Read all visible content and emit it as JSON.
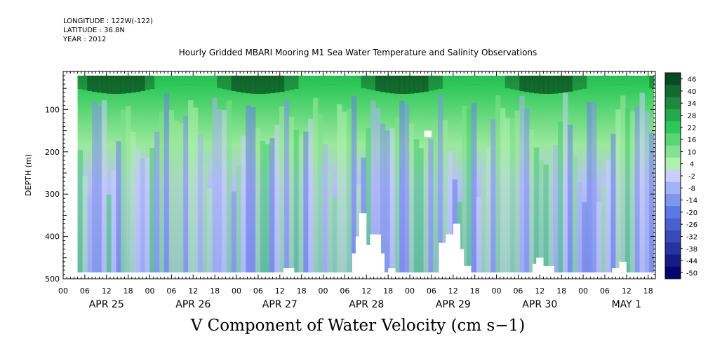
{
  "header": {
    "longitude": "LONGITUDE : 122W(-122)",
    "latitude": "LATITUDE : 36.8N",
    "year": "YEAR : 2012",
    "title": "Hourly Gridded MBARI Mooring M1 Sea Water Temperature and Salinity Observations"
  },
  "footer": {
    "variable_title": "V Component of Water Velocity (cm s−1)"
  },
  "chart_data": {
    "type": "heatmap",
    "title": "Hourly Gridded MBARI Mooring M1 Sea Water Temperature and Salinity Observations",
    "variable": "V Component of Water Velocity (cm s−1)",
    "xlabel": "",
    "ylabel": "DEPTH (m)",
    "x_range_hours": [
      0,
      164
    ],
    "ylim": [
      500,
      10
    ],
    "y_ticks": [
      100,
      200,
      300,
      400,
      500
    ],
    "hour_tick_labels": [
      "00",
      "06",
      "12",
      "18",
      "00",
      "06",
      "12",
      "18",
      "00",
      "06",
      "12",
      "18",
      "00",
      "06",
      "12",
      "18",
      "00",
      "06",
      "12",
      "18",
      "00",
      "06",
      "12",
      "18",
      "00",
      "06",
      "12",
      "18"
    ],
    "date_labels": [
      {
        "label": "APR 25",
        "hour": 12
      },
      {
        "label": "APR 26",
        "hour": 36
      },
      {
        "label": "APR 27",
        "hour": 60
      },
      {
        "label": "APR 28",
        "hour": 84
      },
      {
        "label": "APR 29",
        "hour": 108
      },
      {
        "label": "APR 30",
        "hour": 132
      },
      {
        "label": "MAY  1",
        "hour": 156
      }
    ],
    "colorbar_levels": [
      -50,
      -44,
      -38,
      -32,
      -26,
      -20,
      -14,
      -8,
      -2,
      4,
      10,
      16,
      22,
      28,
      34,
      40,
      46
    ],
    "colorbar_labels": [
      "46",
      "40",
      "34",
      "28",
      "22",
      "16",
      "10",
      "4",
      "-2",
      "-8",
      "-14",
      "-20",
      "-26",
      "-32",
      "-38",
      "-44",
      "-50"
    ],
    "colors": {
      "positive_strong": "#0a4a20",
      "positive": "#2ec85a",
      "positive_light": "#aef0ae",
      "negative_light": "#c8d0fa",
      "negative": "#5a78e8",
      "negative_strong": "#05056e"
    }
  }
}
